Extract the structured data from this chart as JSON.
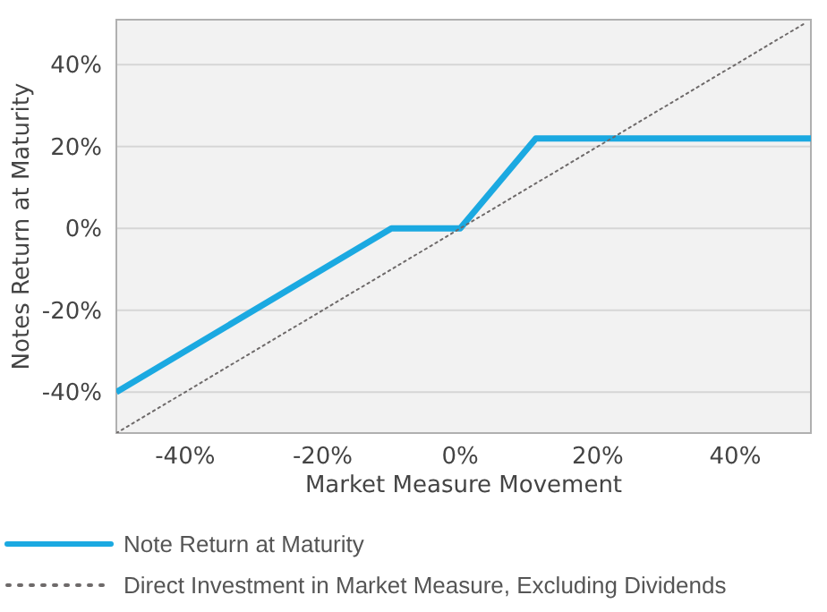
{
  "chart_data": {
    "type": "line",
    "xlabel": "Market Measure Movement",
    "ylabel": "Notes Return at Maturity",
    "xlim": [
      -50,
      51
    ],
    "ylim": [
      -50,
      51
    ],
    "xticks": [
      {
        "value": -40,
        "label": "-40%"
      },
      {
        "value": -20,
        "label": "-20%"
      },
      {
        "value": 0,
        "label": "0%"
      },
      {
        "value": 20,
        "label": "20%"
      },
      {
        "value": 40,
        "label": "40%"
      }
    ],
    "yticks": [
      {
        "value": -40,
        "label": "-40%"
      },
      {
        "value": -20,
        "label": "-20%"
      },
      {
        "value": 0,
        "label": "0%"
      },
      {
        "value": 20,
        "label": "20%"
      },
      {
        "value": 40,
        "label": "40%"
      }
    ],
    "grid": "y",
    "legend": "bottom",
    "marker": "none",
    "series": [
      {
        "name": "Note Return at Maturity",
        "color": "#1ba9e1",
        "line_style": "solid",
        "x": [
          -50,
          -10,
          0,
          11,
          51
        ],
        "values": [
          -40,
          0,
          0,
          22,
          22
        ]
      },
      {
        "name": "Direct Investment in Market Measure, Excluding Dividends",
        "color": "#6e6a6a",
        "line_style": "dotted",
        "x": [
          -50,
          50
        ],
        "values": [
          -50,
          50
        ]
      }
    ]
  }
}
